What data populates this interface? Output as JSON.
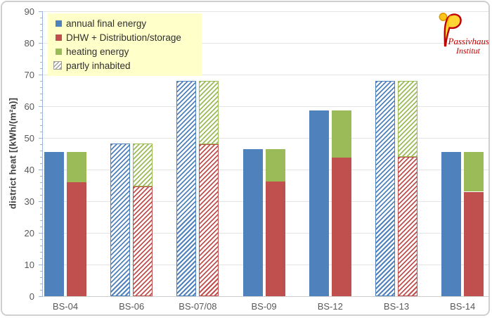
{
  "branding": {
    "line1": "Passivhaus",
    "line2": "Institut"
  },
  "colors": {
    "blue": "#4F81BD",
    "red": "#C0504D",
    "green": "#9BBB59",
    "hatch_gray": "#9C9C9C",
    "legend_bg": "#FFFFC9",
    "axis_blue": "#9BB5D9",
    "grid_gray": "#E4E4E4",
    "tick_text": "#595959",
    "brand_red": "#C00000"
  },
  "chart_data": {
    "type": "bar",
    "title": "",
    "xlabel": "",
    "ylabel": "district heat [(kWh/(m²a)]",
    "ylim": [
      0,
      90
    ],
    "yticks": [
      0,
      10,
      20,
      30,
      40,
      50,
      60,
      70,
      80,
      90
    ],
    "minor_tick_step": 2,
    "grid": "horizontal",
    "legend_position": "top-left",
    "categories": [
      "BS-04",
      "BS-06",
      "BS-07/08",
      "BS-09",
      "BS-12",
      "BS-13",
      "BS-14"
    ],
    "series": [
      {
        "name": "annual final energy",
        "color": "#4F81BD",
        "role": "total-bar",
        "values": [
          45.5,
          48.3,
          68,
          46.5,
          58.7,
          68,
          45.6
        ]
      },
      {
        "name": "DHW + Distribution/storage",
        "color": "#C0504D",
        "role": "stack-bottom",
        "values": [
          36,
          34.7,
          48,
          36.3,
          43.8,
          44,
          33
        ]
      },
      {
        "name": "heating energy",
        "color": "#9BBB59",
        "role": "stack-top",
        "values": [
          9.5,
          13.6,
          20,
          10.2,
          14.9,
          24,
          12.6
        ]
      }
    ],
    "partly_inhabited_categories": [
      "BS-06",
      "BS-07/08",
      "BS-13"
    ],
    "legend": [
      {
        "label": "annual final energy",
        "swatch": "solid",
        "color": "#4F81BD"
      },
      {
        "label": "DHW + Distribution/storage",
        "swatch": "solid",
        "color": "#C0504D"
      },
      {
        "label": "heating energy",
        "swatch": "solid",
        "color": "#9BBB59"
      },
      {
        "label": "partly inhabited",
        "swatch": "hatched",
        "color": "#9C9C9C"
      }
    ]
  }
}
